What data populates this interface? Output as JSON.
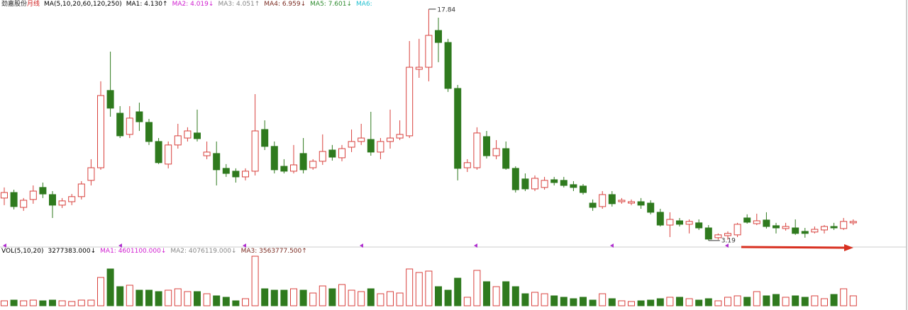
{
  "chart_data": {
    "type": "candlestick",
    "title": "劲嘉股份",
    "period": "月线",
    "ma_label": "MA(5,10,20,60,120,250)",
    "indicators": [
      {
        "text": "MA1: 4.130↑",
        "color": "#000000"
      },
      {
        "text": "MA2: 4.019↓",
        "color": "#d020d0"
      },
      {
        "text": "MA3: 4.051↑",
        "color": "#888888"
      },
      {
        "text": "MA4: 6.959↓",
        "color": "#7a2a20"
      },
      {
        "text": "MA5: 7.601↓",
        "color": "#2e8b2e"
      },
      {
        "text": "MA6:",
        "color": "#20c0d0"
      }
    ],
    "annotations": {
      "high": "17.84",
      "low": "3.19"
    },
    "up_color": "#d8403c",
    "down_color": "#2f7a1e",
    "ylim": [
      2.96,
      18.06
    ],
    "open": [
      5.88,
      6.23,
      5.29,
      5.79,
      6.55,
      6.1,
      5.43,
      5.65,
      5.97,
      7.0,
      7.8,
      12.69,
      11.25,
      9.91,
      11.34,
      10.67,
      9.46,
      8.03,
      9.24,
      9.68,
      10.0,
      8.56,
      8.7,
      7.76,
      7.58,
      7.22,
      7.58,
      10.22,
      9.15,
      7.89,
      7.58,
      8.7,
      7.8,
      8.21,
      8.92,
      8.43,
      9.1,
      9.46,
      9.59,
      8.79,
      9.46,
      9.68,
      9.82,
      14.03,
      14.16,
      16.49,
      15.73,
      12.82,
      7.8,
      7.8,
      9.77,
      8.56,
      9.01,
      7.76,
      7.09,
      6.46,
      6.55,
      7.04,
      7.0,
      6.73,
      6.64,
      5.56,
      5.34,
      6.1,
      5.65,
      5.56,
      5.65,
      5.56,
      4.98,
      4.17,
      4.44,
      4.22,
      4.31,
      3.99,
      3.37,
      3.5,
      3.55,
      4.62,
      4.26,
      4.49,
      4.13,
      3.95,
      3.99,
      3.77,
      3.73,
      3.86,
      4.08,
      3.95,
      4.31
    ],
    "high": [
      6.55,
      6.41,
      5.88,
      6.68,
      6.86,
      6.32,
      5.88,
      6.14,
      6.95,
      8.34,
      13.27,
      15.15,
      11.7,
      11.7,
      11.92,
      10.89,
      9.68,
      9.46,
      10.58,
      10.36,
      11.48,
      9.46,
      9.46,
      8.03,
      7.76,
      7.76,
      12.46,
      10.8,
      9.46,
      8.34,
      9.24,
      9.68,
      8.34,
      9.91,
      9.24,
      9.24,
      10.22,
      10.58,
      11.34,
      9.68,
      11.48,
      10.8,
      15.82,
      15.96,
      17.84,
      17.3,
      15.96,
      13.04,
      8.34,
      10.36,
      10.13,
      9.55,
      9.46,
      7.89,
      7.44,
      7.31,
      7.22,
      7.22,
      7.22,
      6.95,
      6.77,
      5.79,
      6.32,
      6.32,
      5.88,
      5.79,
      5.88,
      5.74,
      5.2,
      4.98,
      4.62,
      4.53,
      4.53,
      4.17,
      3.64,
      3.77,
      4.31,
      4.85,
      4.89,
      4.98,
      4.31,
      4.31,
      4.53,
      3.99,
      4.08,
      4.17,
      4.31,
      4.62,
      4.53
    ],
    "low": [
      5.43,
      5.16,
      5.07,
      5.52,
      5.88,
      4.62,
      5.25,
      5.43,
      5.79,
      6.68,
      7.67,
      11.03,
      9.68,
      9.68,
      10.13,
      9.24,
      8.03,
      7.76,
      9.01,
      9.46,
      9.46,
      8.34,
      6.68,
      7.22,
      6.86,
      7.0,
      7.31,
      8.92,
      7.44,
      7.44,
      7.44,
      7.44,
      7.67,
      7.98,
      8.25,
      8.21,
      8.79,
      9.24,
      8.56,
      8.34,
      9.01,
      9.55,
      9.68,
      13.49,
      13.27,
      14.48,
      12.6,
      7.0,
      7.53,
      7.67,
      8.38,
      8.34,
      7.67,
      6.23,
      6.32,
      6.32,
      6.41,
      6.68,
      6.55,
      6.32,
      6.1,
      5.07,
      5.2,
      5.34,
      5.52,
      5.43,
      5.2,
      4.85,
      4.08,
      3.41,
      4.08,
      3.64,
      3.86,
      3.19,
      3.24,
      3.24,
      3.41,
      4.26,
      4.17,
      3.95,
      3.64,
      3.82,
      3.55,
      3.37,
      3.64,
      3.64,
      3.86,
      3.86,
      4.17
    ],
    "close": [
      6.23,
      5.34,
      5.74,
      6.32,
      6.14,
      5.43,
      5.7,
      5.97,
      6.77,
      7.8,
      12.37,
      11.57,
      9.82,
      10.94,
      10.71,
      9.46,
      8.12,
      9.24,
      9.82,
      10.13,
      9.64,
      8.79,
      7.67,
      7.44,
      7.22,
      7.58,
      10.13,
      9.15,
      7.67,
      7.58,
      7.98,
      7.67,
      8.21,
      8.83,
      8.47,
      9.01,
      9.46,
      9.68,
      8.79,
      9.46,
      9.68,
      9.91,
      14.16,
      14.16,
      16.18,
      15.73,
      12.82,
      7.76,
      8.12,
      10.0,
      8.56,
      9.01,
      7.76,
      6.41,
      6.46,
      7.13,
      7.0,
      6.86,
      6.68,
      6.55,
      6.23,
      5.29,
      6.1,
      5.52,
      5.74,
      5.65,
      5.43,
      4.98,
      4.17,
      4.53,
      4.22,
      4.4,
      3.99,
      3.28,
      3.55,
      3.64,
      4.22,
      4.35,
      4.44,
      4.08,
      3.99,
      4.08,
      3.64,
      3.64,
      3.9,
      4.08,
      3.99,
      4.4,
      4.4
    ],
    "volume_label": "VOL(5,10,20)",
    "volume_indicators": [
      {
        "text": "3277383.000↓",
        "color": "#000000"
      },
      {
        "text": "MA1: 4601100.000↓",
        "color": "#d020d0"
      },
      {
        "text": "MA2: 4076119.000↓",
        "color": "#888888"
      },
      {
        "text": "MA3: 3563777.500↑",
        "color": "#7a2a20"
      }
    ],
    "volume_ylim": [
      0,
      16850000
    ],
    "volume": [
      1638000,
      1872000,
      1638000,
      1872000,
      1638000,
      1872000,
      1638000,
      1404000,
      1872000,
      1872000,
      9360000,
      12168000,
      6318000,
      6786000,
      5148000,
      5148000,
      4680000,
      5148000,
      5616000,
      4680000,
      4680000,
      3978000,
      3276000,
      2808000,
      1638000,
      2340000,
      16380000,
      5616000,
      5148000,
      5148000,
      5616000,
      5148000,
      4212000,
      6552000,
      5616000,
      7020000,
      5148000,
      4680000,
      5616000,
      3978000,
      4680000,
      4212000,
      12168000,
      10998000,
      11466000,
      6318000,
      5148000,
      9126000,
      2808000,
      11700000,
      7956000,
      6318000,
      7956000,
      6318000,
      3978000,
      4446000,
      3978000,
      3276000,
      2808000,
      2340000,
      2808000,
      1872000,
      3978000,
      2340000,
      1638000,
      1404000,
      1638000,
      1872000,
      2340000,
      2808000,
      2808000,
      2340000,
      1872000,
      2340000,
      1638000,
      2808000,
      3276000,
      2808000,
      4680000,
      3276000,
      3744000,
      2808000,
      3276000,
      2808000,
      3276000,
      2340000,
      3744000,
      5616000,
      3277383
    ]
  }
}
